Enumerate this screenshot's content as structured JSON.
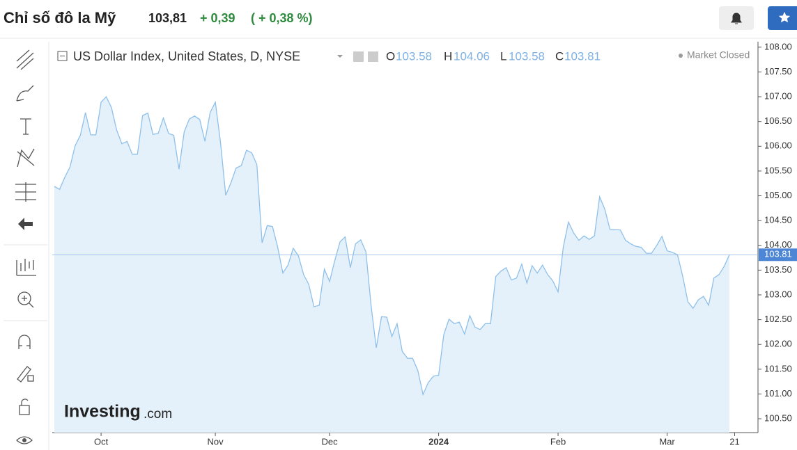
{
  "header": {
    "title": "Chỉ số đô la Mỹ",
    "price": "103,81",
    "change": "+ 0,39",
    "change_pct": "( + 0,38 %)"
  },
  "chart_data": {
    "type": "area",
    "title": "US Dollar Index, United States, D, NYSE",
    "status": "Market Closed",
    "logo": {
      "main": "Investing",
      "suffix": ".com"
    },
    "ohlc": [
      {
        "label": "O",
        "value": 103.58
      },
      {
        "label": "H",
        "value": 104.06
      },
      {
        "label": "L",
        "value": 103.58
      },
      {
        "label": "C",
        "value": 103.81
      }
    ],
    "color": "#8fc0ea",
    "fill": "#e4f1fa",
    "grid": false,
    "price_line": 103.81,
    "ylim": [
      100.22,
      108.11
    ],
    "yticks": [
      {
        "value": 100.5,
        "label": "100.50"
      },
      {
        "value": 101,
        "label": "101.00"
      },
      {
        "value": 101.5,
        "label": "101.50"
      },
      {
        "value": 102,
        "label": "102.00"
      },
      {
        "value": 102.5,
        "label": "102.50"
      },
      {
        "value": 103,
        "label": "103.00"
      },
      {
        "value": 103.5,
        "label": "103.50"
      },
      {
        "value": 104,
        "label": "104.00"
      },
      {
        "value": 104.5,
        "label": "104.50"
      },
      {
        "value": 105,
        "label": "105.00"
      },
      {
        "value": 105.5,
        "label": "105.50"
      },
      {
        "value": 106,
        "label": "106.00"
      },
      {
        "value": 106.5,
        "label": "106.50"
      },
      {
        "value": 107,
        "label": "107.00"
      },
      {
        "value": 107.5,
        "label": "107.50"
      },
      {
        "value": 108,
        "label": "108.00"
      }
    ],
    "categories": [
      null,
      null,
      null,
      null,
      null,
      null,
      null,
      null,
      null,
      "Oct",
      null,
      null,
      null,
      null,
      null,
      null,
      null,
      null,
      null,
      null,
      null,
      null,
      null,
      null,
      null,
      null,
      null,
      null,
      null,
      null,
      null,
      "Nov",
      null,
      null,
      null,
      null,
      null,
      null,
      null,
      null,
      null,
      null,
      null,
      null,
      null,
      null,
      null,
      null,
      null,
      null,
      null,
      null,
      null,
      "Dec",
      null,
      null,
      null,
      null,
      null,
      null,
      null,
      null,
      null,
      null,
      null,
      null,
      null,
      null,
      null,
      null,
      null,
      null,
      null,
      null,
      "2024",
      null,
      null,
      null,
      null,
      null,
      null,
      null,
      null,
      null,
      null,
      null,
      null,
      null,
      null,
      null,
      null,
      null,
      null,
      null,
      null,
      null,
      null,
      "Feb",
      null,
      null,
      null,
      null,
      null,
      null,
      null,
      null,
      null,
      null,
      null,
      null,
      null,
      null,
      null,
      null,
      null,
      null,
      null,
      null,
      "Mar",
      null,
      null,
      null,
      null,
      null,
      null,
      null,
      null,
      null,
      null,
      null,
      null,
      "21"
    ],
    "values": [
      105.19,
      105.13,
      105.37,
      105.58,
      106.01,
      106.22,
      106.68,
      106.23,
      106.23,
      106.89,
      107.0,
      106.78,
      106.33,
      106.05,
      106.1,
      105.84,
      105.84,
      106.62,
      106.67,
      106.24,
      106.26,
      106.57,
      106.26,
      106.22,
      105.54,
      106.29,
      106.55,
      106.61,
      106.54,
      106.1,
      106.68,
      106.89,
      106.08,
      105.01,
      105.26,
      105.56,
      105.61,
      105.92,
      105.87,
      105.63,
      104.05,
      104.4,
      104.38,
      103.97,
      103.44,
      103.6,
      103.94,
      103.79,
      103.41,
      103.21,
      102.76,
      102.79,
      103.52,
      103.27,
      103.69,
      104.07,
      104.17,
      103.55,
      104.03,
      104.11,
      103.87,
      102.78,
      101.93,
      102.56,
      102.55,
      102.16,
      102.42,
      101.86,
      101.72,
      101.72,
      101.47,
      100.99,
      101.23,
      101.36,
      101.38,
      102.2,
      102.51,
      102.42,
      102.45,
      102.21,
      102.58,
      102.35,
      102.3,
      102.42,
      102.42,
      103.37,
      103.48,
      103.55,
      103.3,
      103.34,
      103.62,
      103.24,
      103.59,
      103.44,
      103.6,
      103.41,
      103.28,
      103.06,
      103.96,
      104.47,
      104.25,
      104.1,
      104.19,
      104.12,
      104.19,
      104.98,
      104.73,
      104.32,
      104.32,
      104.31,
      104.1,
      104.03,
      103.98,
      103.96,
      103.84,
      103.84,
      104.0,
      104.18,
      103.89,
      103.86,
      103.81,
      103.38,
      102.86,
      102.73,
      102.9,
      102.97,
      102.79,
      103.34,
      103.41,
      103.58,
      103.81,
      null
    ]
  }
}
